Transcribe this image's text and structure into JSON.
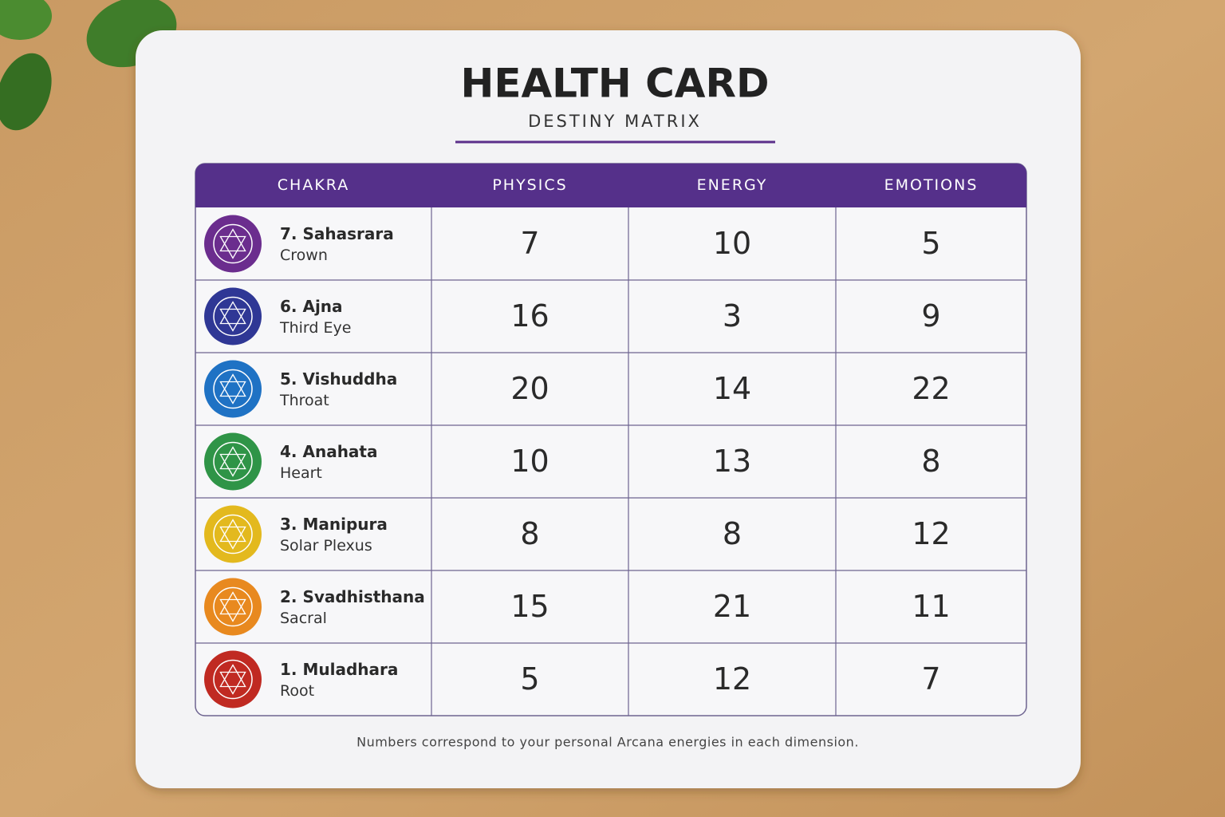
{
  "header": {
    "title": "HEALTH CARD",
    "subtitle": "DESTINY MATRIX"
  },
  "table": {
    "columns": [
      "CHAKRA",
      "PHYSICS",
      "ENERGY",
      "EMOTIONS"
    ],
    "rows": [
      {
        "chakra": "7. Sahasrara",
        "area": "Crown",
        "values": [
          7,
          10,
          5
        ]
      },
      {
        "chakra": "6. Ajna",
        "area": "Third Eye",
        "values": [
          16,
          3,
          9
        ]
      },
      {
        "chakra": "5. Vishuddha",
        "area": "Throat",
        "values": [
          20,
          14,
          22
        ]
      },
      {
        "chakra": "4. Anahata",
        "area": "Heart",
        "values": [
          10,
          13,
          8
        ]
      },
      {
        "chakra": "3. Manipura",
        "area": "Solar Plexus",
        "values": [
          8,
          8,
          12
        ]
      },
      {
        "chakra": "2. Svadhisthana",
        "area": "Sacral",
        "values": [
          15,
          21,
          11
        ]
      },
      {
        "chakra": "1. Muladhara",
        "area": "Root",
        "values": [
          5,
          12,
          7
        ]
      }
    ]
  },
  "footer": {
    "note": "Numbers correspond to your personal Arcana energies in each dimension."
  }
}
